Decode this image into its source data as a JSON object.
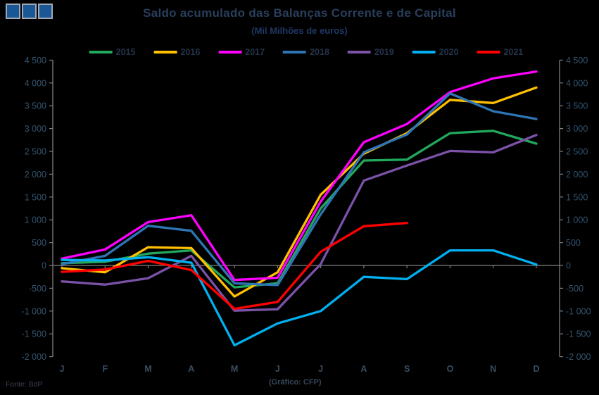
{
  "header": {
    "title": "Saldo acumulado das Balanças Corrente e de Capital",
    "subtitle": "(Mil Milhões de euros)"
  },
  "footer": {
    "source": "Fonte: BdP",
    "credit": "(Gráfico: CFP)"
  },
  "logo": {
    "name": "cfp-three-squares-logo",
    "square_color": "#1A5796",
    "square_count": 3
  },
  "colors": {
    "background": "#000000",
    "axis": "#7F7F7F",
    "tick_label": "#33536F",
    "month_label": "#3A4E60"
  },
  "chart_data": {
    "type": "line",
    "title": "Saldo acumulado das Balanças Corrente e de Capital",
    "subtitle": "(Mil Milhões de euros)",
    "categories": [
      "J",
      "F",
      "M",
      "A",
      "M",
      "J",
      "J",
      "A",
      "S",
      "O",
      "N",
      "D"
    ],
    "ylim": [
      -2000,
      4500
    ],
    "ytick_step": 500,
    "ytick_labels": [
      "4 500",
      "4 000",
      "3 500",
      "3 000",
      "2 500",
      "2 000",
      "1 500",
      "1 000",
      "500",
      "0",
      "-500",
      "-1 000",
      "-1 500",
      "-2 000"
    ],
    "grid": "zero-line-only",
    "legend_position": "top",
    "dual_axis": true,
    "series": [
      {
        "name": "2015",
        "color": "#21A85C",
        "values": [
          50,
          80,
          260,
          330,
          -480,
          -390,
          1250,
          2300,
          2320,
          2900,
          2950,
          2670
        ]
      },
      {
        "name": "2016",
        "color": "#FFC000",
        "values": [
          -60,
          -150,
          400,
          380,
          -680,
          -150,
          1550,
          2450,
          2900,
          3630,
          3560,
          3900
        ]
      },
      {
        "name": "2017",
        "color": "#FF00FF",
        "values": [
          150,
          350,
          950,
          1100,
          -320,
          -270,
          1400,
          2700,
          3100,
          3800,
          4100,
          4250
        ]
      },
      {
        "name": "2018",
        "color": "#2E75B6",
        "values": [
          30,
          210,
          870,
          760,
          -390,
          -430,
          1120,
          2480,
          2870,
          3770,
          3380,
          3210
        ]
      },
      {
        "name": "2019",
        "color": "#7B52A8",
        "values": [
          -350,
          -420,
          -280,
          210,
          -990,
          -960,
          30,
          1860,
          2190,
          2510,
          2480,
          2860
        ]
      },
      {
        "name": "2020",
        "color": "#00B0F0",
        "values": [
          120,
          110,
          180,
          60,
          -1750,
          -1270,
          -1000,
          -250,
          -300,
          330,
          330,
          20
        ]
      },
      {
        "name": "2021",
        "color": "#FF0000",
        "values": [
          -140,
          -90,
          100,
          -100,
          -950,
          -800,
          300,
          860,
          930,
          null,
          null,
          null
        ]
      }
    ]
  }
}
